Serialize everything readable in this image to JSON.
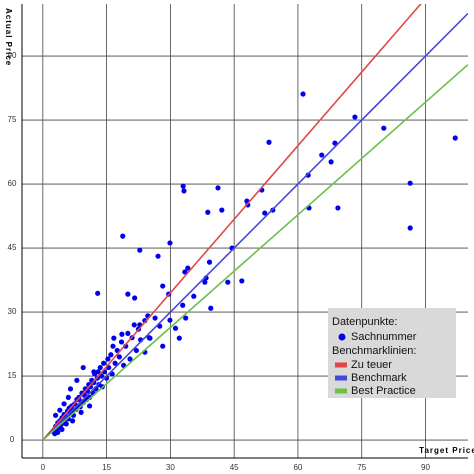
{
  "chart_data": {
    "type": "scatter",
    "x_label": "Target Price",
    "y_label": "Actual Price",
    "xlim": [
      -4.9,
      100
    ],
    "ylim": [
      -4.2,
      102.2
    ],
    "xticks": [
      0,
      15,
      30,
      45,
      60,
      75,
      90
    ],
    "yticks": [
      0,
      15,
      30,
      45,
      60,
      75,
      90
    ],
    "grid": true,
    "legend_position": "lower right",
    "legend": {
      "points_title": "Datenpunkte:",
      "lines_title": "Benchmarklinien:"
    },
    "series": [
      {
        "name": "Sachnummer",
        "type": "scatter",
        "color": "#0000ee",
        "x": [
          97,
          80.2,
          73.4,
          68.7,
          67.8,
          65.6,
          61.2,
          62.4,
          86.4,
          86.4,
          69.4,
          62.6,
          53.2,
          54.1,
          52.2,
          48,
          48.2,
          51.5,
          41.2,
          38.8,
          42.1,
          33,
          33.2,
          29.9,
          18.8,
          27.1,
          22.8,
          34.1,
          44.5,
          39.2,
          38.1,
          38.4,
          46.8,
          43.5,
          39.5,
          35.5,
          29.6,
          28.2,
          32.9,
          33.4,
          32.1,
          31.2,
          20,
          12.9,
          21.6,
          24.7,
          26.4,
          27.5,
          29.9,
          33.6,
          22.8,
          18.6,
          16.7,
          25.2,
          28.2,
          24,
          2.5,
          3,
          3.2,
          3.5,
          3.8,
          4,
          4.2,
          4.5,
          4.8,
          5,
          5.2,
          5.5,
          5.8,
          6,
          6.2,
          6.5,
          6.8,
          7,
          7.2,
          7.5,
          7.8,
          8,
          8.2,
          8.5,
          8.8,
          9,
          9.2,
          9.5,
          9.8,
          10,
          10.3,
          10.5,
          10.8,
          11,
          11.2,
          11.5,
          11.8,
          12,
          12.2,
          12.5,
          12.8,
          13,
          13.2,
          13.5,
          13.8,
          14,
          14.3,
          14.5,
          15,
          15.3,
          15.5,
          16,
          16.3,
          16.5,
          17,
          17.5,
          18,
          18.5,
          19,
          19.5,
          20,
          20.5,
          21,
          21.5,
          22,
          22.5,
          23,
          24,
          25,
          3,
          4,
          5,
          6,
          2.8,
          3.5,
          4.5,
          5.5,
          7,
          9,
          11,
          12,
          9.5,
          8,
          6.5
        ],
        "y": [
          70.8,
          73.1,
          75.7,
          69.6,
          65.2,
          66.8,
          81.1,
          62.1,
          60.2,
          49.7,
          54.4,
          54.4,
          69.8,
          53.9,
          53.2,
          56,
          55.1,
          58.6,
          59.1,
          53.4,
          53.9,
          59.5,
          58.4,
          46.2,
          47.8,
          43.1,
          44.5,
          40.3,
          45,
          41.7,
          37,
          38,
          37.3,
          37,
          30.9,
          33.7,
          34.2,
          36.1,
          31.6,
          39.4,
          23.9,
          26.2,
          34.2,
          34.4,
          33.3,
          29.1,
          28.6,
          26.7,
          28.1,
          28.6,
          27,
          24.8,
          23.9,
          23.9,
          22,
          20.6,
          2,
          3.2,
          2.5,
          4,
          3,
          4.5,
          3.5,
          5.2,
          4,
          6,
          4.8,
          5.5,
          6.8,
          5,
          7.5,
          6.2,
          8,
          7,
          5.8,
          8.5,
          7.2,
          9.5,
          8,
          10,
          7.8,
          9,
          11,
          8.8,
          10.5,
          12,
          9.5,
          11.5,
          13,
          10,
          12.5,
          14,
          11,
          13.5,
          15.5,
          12,
          14.5,
          16,
          13,
          17,
          15,
          12.5,
          18,
          16,
          14.5,
          19,
          17,
          20,
          15.5,
          22,
          18,
          21,
          19.5,
          23,
          17.5,
          22,
          25,
          19,
          24,
          27,
          21,
          26,
          23.5,
          28,
          24,
          5.8,
          7,
          8.5,
          10,
          1.5,
          1.8,
          2.5,
          3.8,
          4.5,
          6.5,
          8,
          16,
          17,
          14,
          12
        ]
      },
      {
        "name": "Zu teuer",
        "type": "line",
        "color": "#e04848",
        "x": [
          0,
          90
        ],
        "y": [
          0,
          103.5
        ]
      },
      {
        "name": "Benchmark",
        "type": "line",
        "color": "#4848d8",
        "x": [
          0,
          100
        ],
        "y": [
          0,
          100
        ]
      },
      {
        "name": "Best Practice",
        "type": "line",
        "color": "#6cc04a",
        "x": [
          0,
          100
        ],
        "y": [
          0,
          88
        ]
      }
    ]
  }
}
